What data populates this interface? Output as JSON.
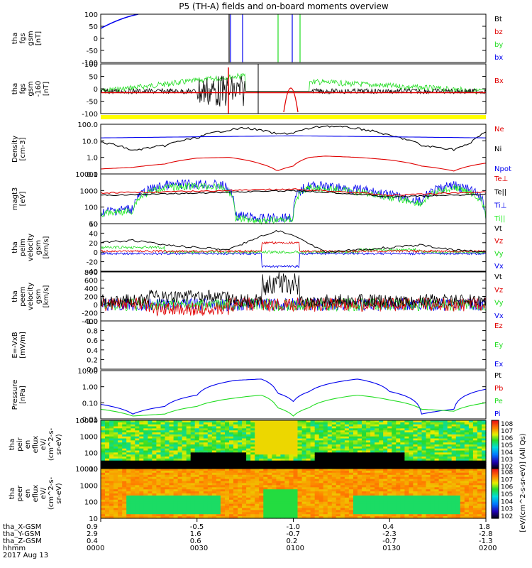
{
  "title": "P5 (TH-A) fields and on-board moments overview",
  "colors": {
    "black": "#000000",
    "red": "#e00000",
    "green": "#22dd22",
    "blue": "#0000ee",
    "lime": "#22ee22",
    "yellow": "#ffff00"
  },
  "panels": [
    {
      "ylabel": [
        "tha",
        "fgs",
        "gsm",
        "[nT]"
      ],
      "ticks": [
        "100",
        "50",
        "0",
        "-50",
        "-100"
      ],
      "legend": [
        {
          "t": "Bt",
          "c": "black"
        },
        {
          "t": "bz",
          "c": "red"
        },
        {
          "t": "by",
          "c": "green"
        },
        {
          "t": "bx",
          "c": "blue"
        }
      ]
    },
    {
      "ylabel": [
        "tha",
        "fgs",
        "gsm",
        "-160",
        "[nT]"
      ],
      "ticks": [
        "100",
        "50",
        "0",
        "-50",
        "-100"
      ],
      "legend": [
        {
          "t": "Bx",
          "c": "red"
        }
      ]
    },
    {
      "ylabel": [
        "Density",
        "[cm-3]"
      ],
      "ticks": [
        "100.0",
        "10.0",
        "1.0",
        "0.1"
      ],
      "legend": [
        {
          "t": "Ne",
          "c": "red"
        },
        {
          "t": "Ni",
          "c": "black"
        },
        {
          "t": "Npot",
          "c": "blue"
        }
      ]
    },
    {
      "ylabel": [
        "magt3",
        "[eV]"
      ],
      "ticks": [
        "10000",
        "1000",
        "100",
        "10"
      ],
      "legend": [
        {
          "t": "Te⊥",
          "c": "red"
        },
        {
          "t": "Te||",
          "c": "black"
        },
        {
          "t": "Ti⊥",
          "c": "blue"
        },
        {
          "t": "Ti||",
          "c": "lime"
        }
      ]
    },
    {
      "ylabel": [
        "tha",
        "peim",
        "velocity",
        "gsm",
        "[km/s]"
      ],
      "ticks": [
        "60",
        "40",
        "20",
        "0",
        "-20",
        "-40"
      ],
      "legend": [
        {
          "t": "Vt",
          "c": "black"
        },
        {
          "t": "Vz",
          "c": "red"
        },
        {
          "t": "Vy",
          "c": "green"
        },
        {
          "t": "Vx",
          "c": "blue"
        }
      ]
    },
    {
      "ylabel": [
        "tha",
        "peem",
        "velocity",
        "gsm",
        "[km/s]"
      ],
      "ticks": [
        "800",
        "600",
        "400",
        "200",
        "0",
        "-200",
        "-400"
      ],
      "legend": [
        {
          "t": "Vt",
          "c": "black"
        },
        {
          "t": "Vz",
          "c": "red"
        },
        {
          "t": "Vy",
          "c": "green"
        },
        {
          "t": "Vx",
          "c": "blue"
        }
      ]
    },
    {
      "ylabel": [
        "E=-VxB",
        "[mV/m]"
      ],
      "ticks": [
        "1.0",
        "0.8",
        "0.6",
        "0.4",
        "0.2",
        "0.0"
      ],
      "legend": [
        {
          "t": "Ez",
          "c": "red"
        },
        {
          "t": "Ey",
          "c": "green"
        },
        {
          "t": "Ex",
          "c": "blue"
        }
      ]
    },
    {
      "ylabel": [
        "Pressure",
        "[nPa]"
      ],
      "ticks": [
        "10.00",
        "1.00",
        "0.10",
        "0.01"
      ],
      "legend": [
        {
          "t": "Pt",
          "c": "black"
        },
        {
          "t": "Pb",
          "c": "red"
        },
        {
          "t": "Pe",
          "c": "green"
        },
        {
          "t": "Pi",
          "c": "blue"
        }
      ]
    },
    {
      "ylabel": [
        "tha",
        "peir",
        "en",
        "eflux",
        "eV/",
        "(cm^2-s-",
        "sr-eV)"
      ],
      "ticks": [
        "10000",
        "1000",
        "100",
        "10"
      ]
    },
    {
      "ylabel": [
        "tha",
        "peer",
        "en",
        "eflux",
        "eV/",
        "(cm^2-s-",
        "sr-eV)"
      ],
      "ticks": [
        "10000",
        "1000",
        "100",
        "10"
      ]
    }
  ],
  "colorbar_ion": {
    "ticks": [
      "10^8",
      "10^7",
      "10^6",
      "10^5",
      "10^4",
      "10^3",
      "10^2"
    ]
  },
  "colorbar_elec": {
    "ticks": [
      "10^8",
      "10^7",
      "10^6",
      "10^5",
      "10^4",
      "10^3",
      "10^2"
    ]
  },
  "colorbar_label": "[eV/(cm^2-s-sr-eV)] (All Qs)",
  "xaxis": {
    "rows": [
      {
        "label": "tha_X-GSM",
        "values": [
          "0.9",
          "-0.5",
          "-1.0",
          "0.4",
          "1.8"
        ]
      },
      {
        "label": "tha_Y-GSM",
        "values": [
          "2.9",
          "1.6",
          "-0.7",
          "-2.3",
          "-2.8"
        ]
      },
      {
        "label": "tha_Z-GSM",
        "values": [
          "0.4",
          "0.6",
          "0.2",
          "-0.7",
          "-1.3"
        ]
      },
      {
        "label": "hhmm",
        "values": [
          "0000",
          "0030",
          "0100",
          "0130",
          "0200"
        ]
      }
    ],
    "date": "2017 Aug 13"
  },
  "chart_data": {
    "type": "line",
    "x_axis": "time (hhmm)",
    "x_range": [
      "0000",
      "0200"
    ],
    "series": [
      {
        "name": "Ni",
        "units": "cm-3",
        "log": true,
        "x_min": [
          0,
          10,
          20,
          30,
          45,
          55,
          60,
          70,
          80,
          90,
          100,
          110,
          115,
          120
        ],
        "values": [
          8,
          2.5,
          5,
          15,
          60,
          25,
          30,
          80,
          55,
          20,
          5,
          3,
          6,
          30
        ]
      },
      {
        "name": "Ne",
        "units": "cm-3",
        "log": true,
        "x_min": [
          0,
          10,
          20,
          30,
          40,
          50,
          55,
          60,
          65,
          70,
          80,
          90,
          100,
          110,
          120
        ],
        "values": [
          0.2,
          0.25,
          0.4,
          0.9,
          1.0,
          0.4,
          0.15,
          0.3,
          1.0,
          1.2,
          1.0,
          0.7,
          0.3,
          0.15,
          0.45
        ]
      },
      {
        "name": "Npot",
        "units": "cm-3",
        "log": true,
        "x_min": [
          0,
          60,
          120
        ],
        "values": [
          15,
          20,
          15
        ]
      },
      {
        "name": "Pi",
        "units": "nPa",
        "log": true,
        "x_min": [
          0,
          10,
          20,
          30,
          42,
          50,
          55,
          60,
          65,
          80,
          90,
          100,
          110,
          120
        ],
        "values": [
          0.08,
          0.02,
          0.06,
          0.3,
          2.5,
          3.0,
          0.4,
          0.12,
          0.5,
          3.0,
          0.5,
          0.02,
          0.04,
          0.7
        ]
      },
      {
        "name": "Pe",
        "units": "nPa",
        "log": true,
        "x_min": [
          0,
          10,
          20,
          30,
          42,
          50,
          55,
          60,
          65,
          80,
          90,
          100,
          110,
          120
        ],
        "values": [
          0.04,
          0.015,
          0.02,
          0.06,
          0.2,
          0.3,
          0.05,
          0.015,
          0.05,
          0.3,
          0.15,
          0.04,
          0.03,
          0.1
        ]
      },
      {
        "name": "Vt (peim)",
        "units": "km/s",
        "x_min": [
          0,
          10,
          20,
          30,
          40,
          45,
          50,
          55,
          60,
          70,
          80,
          90,
          100,
          110,
          120
        ],
        "values": [
          20,
          25,
          15,
          10,
          5,
          20,
          35,
          45,
          35,
          0,
          5,
          10,
          15,
          5,
          0
        ]
      }
    ]
  }
}
